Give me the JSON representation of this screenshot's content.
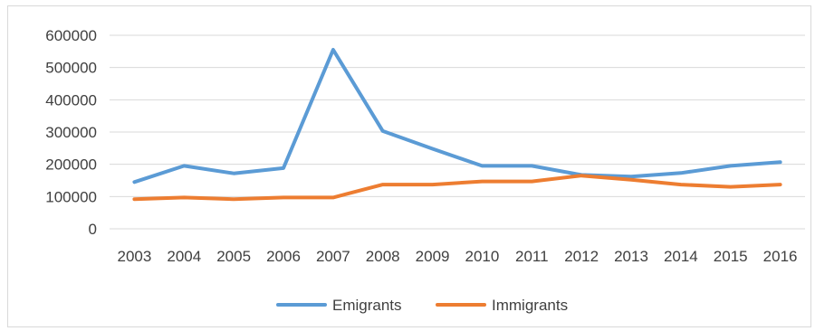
{
  "chart_data": {
    "type": "line",
    "title": "",
    "xlabel": "",
    "ylabel": "",
    "x": [
      "2003",
      "2004",
      "2005",
      "2006",
      "2007",
      "2008",
      "2009",
      "2010",
      "2011",
      "2012",
      "2013",
      "2014",
      "2015",
      "2016"
    ],
    "series": [
      {
        "name": "Emigrants",
        "color": "#5b9bd5",
        "values": [
          145000,
          195000,
          172000,
          188000,
          555000,
          303000,
          248000,
          195000,
          195000,
          167000,
          162000,
          173000,
          195000,
          207000
        ]
      },
      {
        "name": "Immigrants",
        "color": "#ed7d31",
        "values": [
          92000,
          97000,
          92000,
          97000,
          97000,
          137000,
          137000,
          147000,
          147000,
          165000,
          152000,
          137000,
          130000,
          137000
        ]
      }
    ],
    "ylim": [
      0,
      600000
    ],
    "yticks": [
      "0",
      "100000",
      "200000",
      "300000",
      "400000",
      "500000",
      "600000"
    ],
    "grid": true,
    "legend": "bottom"
  }
}
